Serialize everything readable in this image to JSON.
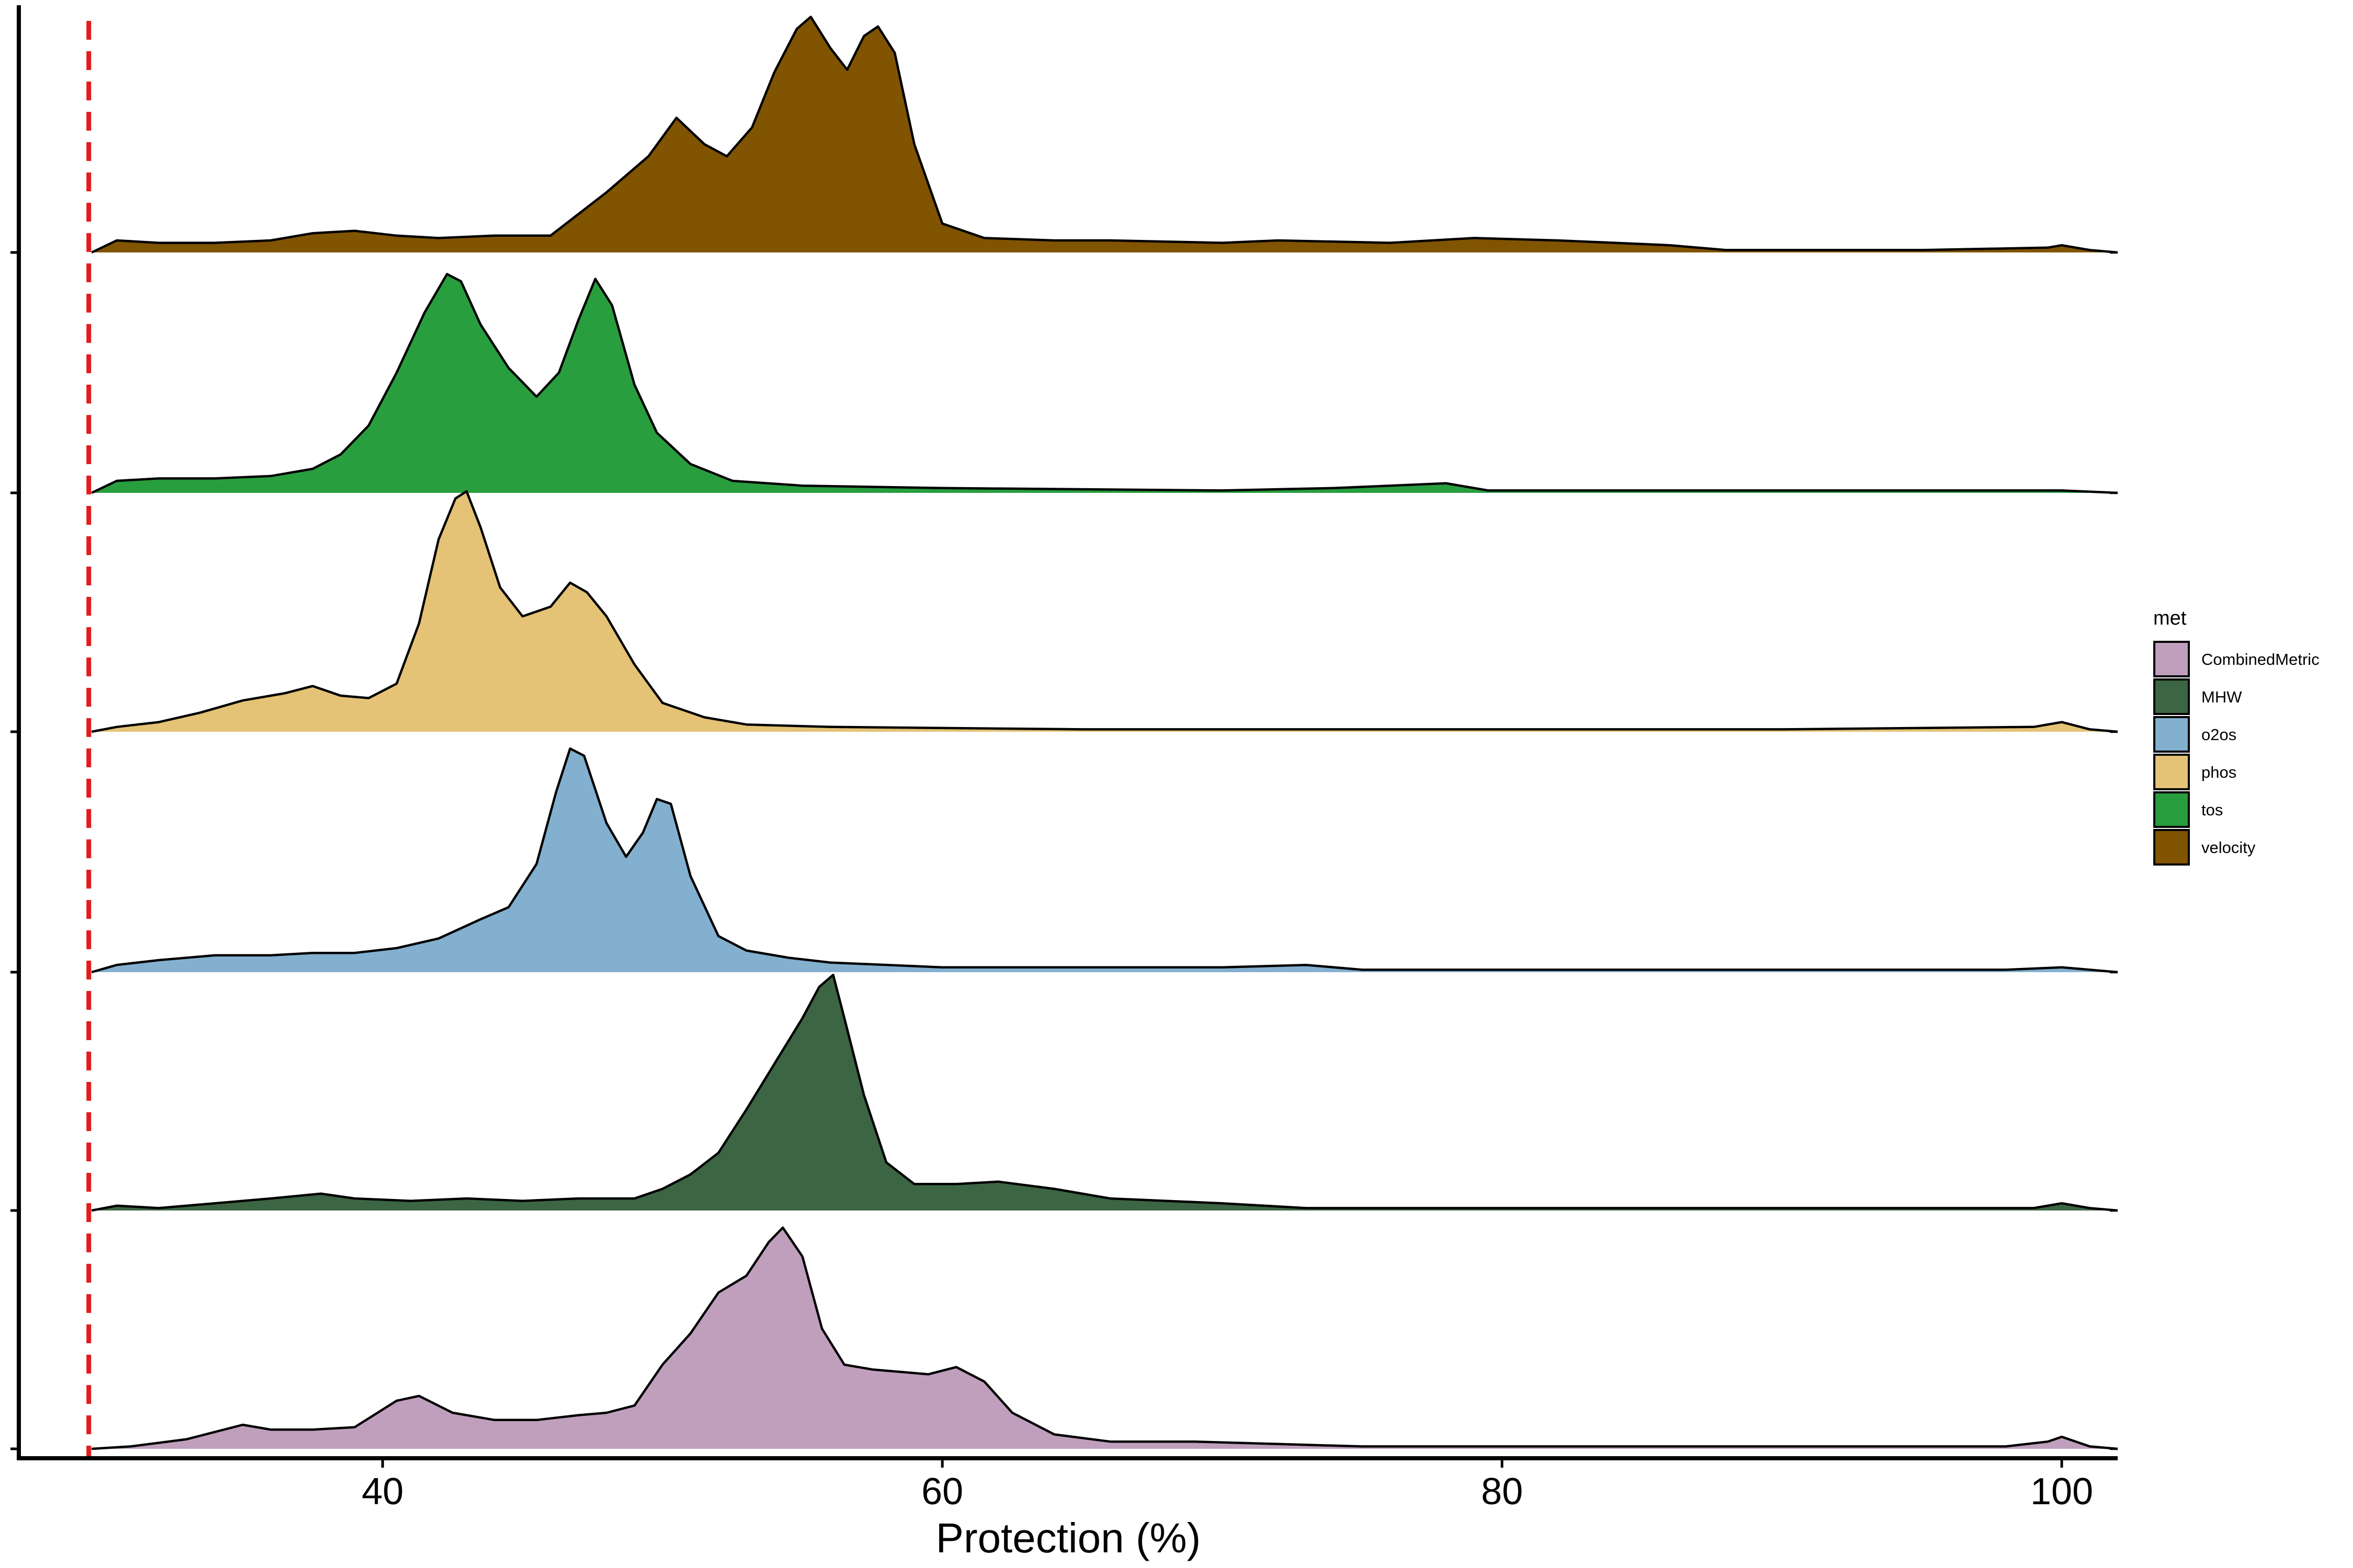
{
  "chart_data": {
    "type": "ridgeline-density",
    "xlabel": "Protection (%)",
    "ylabel": "",
    "xlim": [
      27,
      102
    ],
    "x_ticks": [
      40,
      60,
      80,
      100
    ],
    "x_tick_labels": [
      "40",
      "60",
      "80",
      "100"
    ],
    "reference_line": {
      "x": 29.5,
      "color": "#e41a1c",
      "style": "dashed"
    },
    "grid": false,
    "legend": {
      "title": "met",
      "placement": "right",
      "entries": [
        {
          "label": "CombinedMetric",
          "color": "#c09fbd"
        },
        {
          "label": "MHW",
          "color": "#3c6543"
        },
        {
          "label": "o2os",
          "color": "#83b0cf"
        },
        {
          "label": "phos",
          "color": "#e4c276"
        },
        {
          "label": "tos",
          "color": "#299e3f"
        },
        {
          "label": "velocity",
          "color": "#805401"
        }
      ]
    },
    "ridge_order_bottom_to_top": [
      "CombinedMetric",
      "MHW",
      "o2os",
      "phos",
      "tos",
      "velocity"
    ],
    "series": [
      {
        "name": "CombinedMetric",
        "color": "#c09fbd",
        "points": [
          [
            29.6,
            0
          ],
          [
            31,
            0.01
          ],
          [
            33,
            0.04
          ],
          [
            35,
            0.1
          ],
          [
            36,
            0.08
          ],
          [
            37.5,
            0.08
          ],
          [
            39,
            0.09
          ],
          [
            40.5,
            0.2
          ],
          [
            41.3,
            0.22
          ],
          [
            42.5,
            0.15
          ],
          [
            44,
            0.12
          ],
          [
            45.5,
            0.12
          ],
          [
            47,
            0.14
          ],
          [
            48,
            0.15
          ],
          [
            49,
            0.18
          ],
          [
            50,
            0.35
          ],
          [
            51,
            0.48
          ],
          [
            52,
            0.65
          ],
          [
            53,
            0.72
          ],
          [
            53.8,
            0.86
          ],
          [
            54.3,
            0.92
          ],
          [
            55,
            0.8
          ],
          [
            55.7,
            0.5
          ],
          [
            56.5,
            0.35
          ],
          [
            57.5,
            0.33
          ],
          [
            58.5,
            0.32
          ],
          [
            59.5,
            0.31
          ],
          [
            60.5,
            0.34
          ],
          [
            61.5,
            0.28
          ],
          [
            62.5,
            0.15
          ],
          [
            64,
            0.06
          ],
          [
            66,
            0.03
          ],
          [
            69,
            0.03
          ],
          [
            72,
            0.02
          ],
          [
            75,
            0.01
          ],
          [
            85,
            0.01
          ],
          [
            98,
            0.01
          ],
          [
            99.5,
            0.03
          ],
          [
            100,
            0.05
          ],
          [
            101,
            0.01
          ],
          [
            102,
            0
          ]
        ]
      },
      {
        "name": "MHW",
        "color": "#3c6543",
        "points": [
          [
            29.6,
            0
          ],
          [
            30.5,
            0.02
          ],
          [
            32,
            0.01
          ],
          [
            34,
            0.03
          ],
          [
            36,
            0.05
          ],
          [
            37.8,
            0.07
          ],
          [
            39,
            0.05
          ],
          [
            41,
            0.04
          ],
          [
            43,
            0.05
          ],
          [
            45,
            0.04
          ],
          [
            47,
            0.05
          ],
          [
            49,
            0.05
          ],
          [
            50,
            0.09
          ],
          [
            51,
            0.15
          ],
          [
            52,
            0.24
          ],
          [
            53,
            0.42
          ],
          [
            54,
            0.61
          ],
          [
            55,
            0.8
          ],
          [
            55.6,
            0.93
          ],
          [
            56.1,
            0.98
          ],
          [
            56.5,
            0.8
          ],
          [
            57.2,
            0.48
          ],
          [
            58,
            0.2
          ],
          [
            59,
            0.11
          ],
          [
            60.5,
            0.11
          ],
          [
            62,
            0.12
          ],
          [
            64,
            0.09
          ],
          [
            66,
            0.05
          ],
          [
            68,
            0.04
          ],
          [
            70,
            0.03
          ],
          [
            73,
            0.01
          ],
          [
            80,
            0.01
          ],
          [
            90,
            0.01
          ],
          [
            99,
            0.01
          ],
          [
            100,
            0.03
          ],
          [
            101,
            0.01
          ],
          [
            102,
            0
          ]
        ]
      },
      {
        "name": "o2os",
        "color": "#83b0cf",
        "points": [
          [
            29.6,
            0
          ],
          [
            30.5,
            0.03
          ],
          [
            32,
            0.05
          ],
          [
            34,
            0.07
          ],
          [
            36,
            0.07
          ],
          [
            37.5,
            0.08
          ],
          [
            39,
            0.08
          ],
          [
            40.5,
            0.1
          ],
          [
            42,
            0.14
          ],
          [
            43.5,
            0.22
          ],
          [
            44.5,
            0.27
          ],
          [
            45.5,
            0.45
          ],
          [
            46.2,
            0.75
          ],
          [
            46.7,
            0.93
          ],
          [
            47.2,
            0.9
          ],
          [
            48,
            0.62
          ],
          [
            48.7,
            0.48
          ],
          [
            49.3,
            0.58
          ],
          [
            49.8,
            0.72
          ],
          [
            50.3,
            0.7
          ],
          [
            51,
            0.4
          ],
          [
            52,
            0.15
          ],
          [
            53,
            0.09
          ],
          [
            54.5,
            0.06
          ],
          [
            56,
            0.04
          ],
          [
            60,
            0.02
          ],
          [
            66,
            0.02
          ],
          [
            70,
            0.02
          ],
          [
            73,
            0.03
          ],
          [
            75,
            0.01
          ],
          [
            85,
            0.01
          ],
          [
            98,
            0.01
          ],
          [
            100,
            0.02
          ],
          [
            101,
            0.01
          ],
          [
            102,
            0
          ]
        ]
      },
      {
        "name": "phos",
        "color": "#e4c276",
        "points": [
          [
            29.6,
            0
          ],
          [
            30.5,
            0.02
          ],
          [
            32,
            0.04
          ],
          [
            33.5,
            0.08
          ],
          [
            35,
            0.13
          ],
          [
            36.5,
            0.16
          ],
          [
            37.5,
            0.19
          ],
          [
            38.5,
            0.15
          ],
          [
            39.5,
            0.14
          ],
          [
            40.5,
            0.2
          ],
          [
            41.3,
            0.45
          ],
          [
            42,
            0.8
          ],
          [
            42.6,
            0.97
          ],
          [
            43,
            1.0
          ],
          [
            43.5,
            0.85
          ],
          [
            44.2,
            0.6
          ],
          [
            45,
            0.48
          ],
          [
            46,
            0.52
          ],
          [
            46.7,
            0.62
          ],
          [
            47.3,
            0.58
          ],
          [
            48,
            0.48
          ],
          [
            49,
            0.28
          ],
          [
            50,
            0.12
          ],
          [
            51.5,
            0.06
          ],
          [
            53,
            0.03
          ],
          [
            56,
            0.02
          ],
          [
            65,
            0.01
          ],
          [
            75,
            0.01
          ],
          [
            90,
            0.01
          ],
          [
            99,
            0.02
          ],
          [
            100,
            0.04
          ],
          [
            101,
            0.01
          ],
          [
            102,
            0
          ]
        ]
      },
      {
        "name": "tos",
        "color": "#299e3f",
        "points": [
          [
            29.6,
            0
          ],
          [
            30.5,
            0.05
          ],
          [
            32,
            0.06
          ],
          [
            34,
            0.06
          ],
          [
            36,
            0.07
          ],
          [
            37.5,
            0.1
          ],
          [
            38.5,
            0.16
          ],
          [
            39.5,
            0.28
          ],
          [
            40.5,
            0.5
          ],
          [
            41.5,
            0.75
          ],
          [
            42.3,
            0.91
          ],
          [
            42.8,
            0.88
          ],
          [
            43.5,
            0.7
          ],
          [
            44.5,
            0.52
          ],
          [
            45.5,
            0.4
          ],
          [
            46.3,
            0.5
          ],
          [
            47,
            0.72
          ],
          [
            47.6,
            0.89
          ],
          [
            48.2,
            0.78
          ],
          [
            49,
            0.45
          ],
          [
            49.8,
            0.25
          ],
          [
            51,
            0.12
          ],
          [
            52.5,
            0.05
          ],
          [
            55,
            0.03
          ],
          [
            60,
            0.02
          ],
          [
            70,
            0.01
          ],
          [
            74,
            0.02
          ],
          [
            76,
            0.03
          ],
          [
            78,
            0.04
          ],
          [
            79.5,
            0.01
          ],
          [
            85,
            0.01
          ],
          [
            98,
            0.01
          ],
          [
            100,
            0.01
          ],
          [
            102,
            0
          ]
        ]
      },
      {
        "name": "velocity",
        "color": "#805401",
        "points": [
          [
            29.6,
            0
          ],
          [
            30.5,
            0.05
          ],
          [
            32,
            0.04
          ],
          [
            34,
            0.04
          ],
          [
            36,
            0.05
          ],
          [
            37.5,
            0.08
          ],
          [
            39,
            0.09
          ],
          [
            40.5,
            0.07
          ],
          [
            42,
            0.06
          ],
          [
            44,
            0.07
          ],
          [
            46,
            0.07
          ],
          [
            48,
            0.25
          ],
          [
            49.5,
            0.4
          ],
          [
            50.5,
            0.56
          ],
          [
            51.5,
            0.45
          ],
          [
            52.3,
            0.4
          ],
          [
            53.2,
            0.52
          ],
          [
            54,
            0.75
          ],
          [
            54.8,
            0.93
          ],
          [
            55.3,
            0.98
          ],
          [
            56,
            0.85
          ],
          [
            56.6,
            0.76
          ],
          [
            57.2,
            0.9
          ],
          [
            57.7,
            0.94
          ],
          [
            58.3,
            0.83
          ],
          [
            59,
            0.45
          ],
          [
            60,
            0.12
          ],
          [
            61.5,
            0.06
          ],
          [
            64,
            0.05
          ],
          [
            66,
            0.05
          ],
          [
            70,
            0.04
          ],
          [
            72,
            0.05
          ],
          [
            76,
            0.04
          ],
          [
            79,
            0.06
          ],
          [
            82,
            0.05
          ],
          [
            86,
            0.03
          ],
          [
            88,
            0.01
          ],
          [
            95,
            0.01
          ],
          [
            99.5,
            0.02
          ],
          [
            100,
            0.03
          ],
          [
            101,
            0.01
          ],
          [
            102,
            0
          ]
        ]
      }
    ]
  }
}
